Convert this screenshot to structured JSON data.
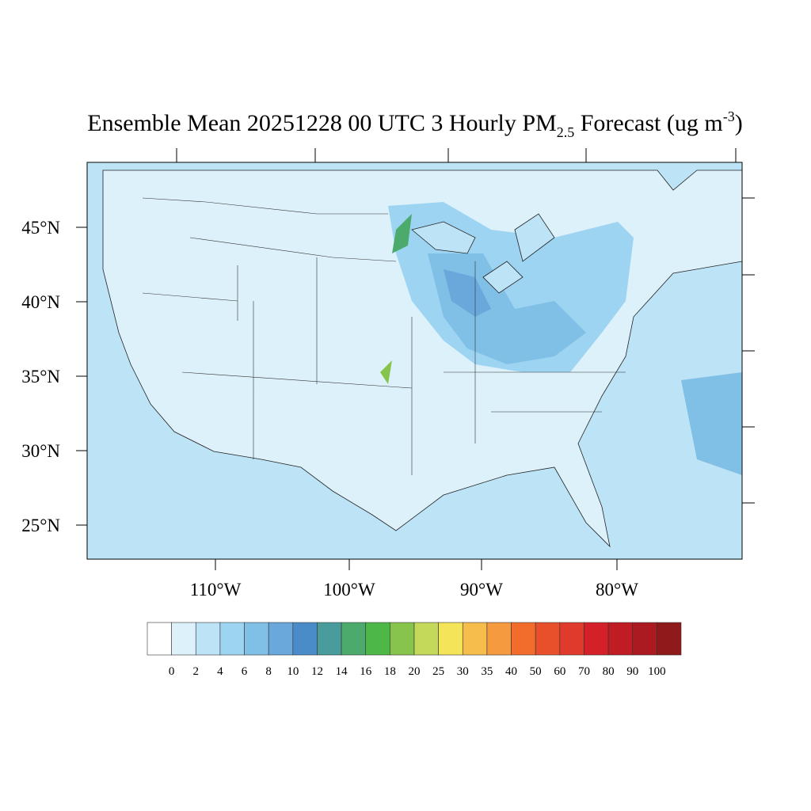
{
  "title": {
    "main": "Ensemble Mean 20251228 00 UTC 3 Hourly PM",
    "sub": "2.5",
    "middle": " Forecast (ug m",
    "sup": "-3",
    "end": ")"
  },
  "lat_labels": [
    "45°N",
    "40°N",
    "35°N",
    "30°N",
    "25°N"
  ],
  "lon_labels": [
    "110°W",
    "100°W",
    "90°W",
    "80°W"
  ],
  "colorbar": {
    "levels": [
      0,
      2,
      4,
      6,
      8,
      10,
      12,
      14,
      16,
      18,
      20,
      25,
      30,
      35,
      40,
      50,
      60,
      70,
      80,
      90,
      100
    ],
    "colors": [
      "#ffffff",
      "#ddf1fb",
      "#bde3f6",
      "#9dd4f2",
      "#80bfe6",
      "#6aa8dc",
      "#4a8cc8",
      "#4a9c9c",
      "#4caa6c",
      "#4db848",
      "#86c44c",
      "#c4d85a",
      "#f4e45a",
      "#f6bc4c",
      "#f59a3e",
      "#f26d2c",
      "#e8502c",
      "#e03a2c",
      "#d42028",
      "#c01c24",
      "#aa1a20",
      "#8e1a1c"
    ]
  }
}
